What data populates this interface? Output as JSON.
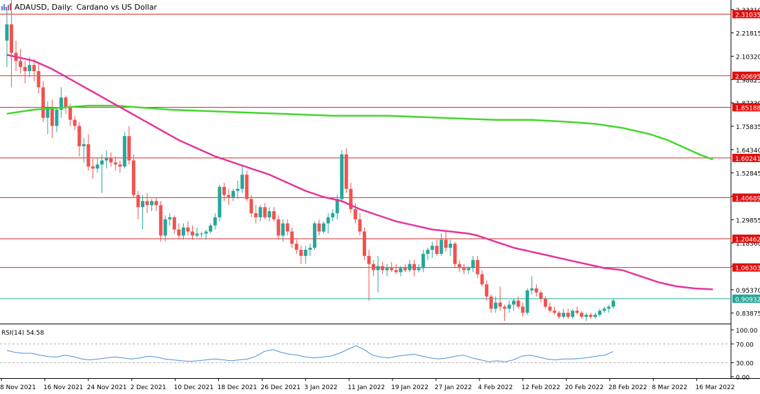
{
  "header": {
    "symbol": "ADAUSD, Daily:",
    "description": "Cardano vs US Dollar",
    "icon": "bar-chart-icon"
  },
  "rsi": {
    "label": "RSI(14) 54.58",
    "levels": [
      70,
      30
    ],
    "axis_ticks": [
      "100.00",
      "70.00",
      "30.00",
      "0.00"
    ],
    "color": "#4b8fd6"
  },
  "colors": {
    "bull": "#26a69a",
    "bear": "#ef5350",
    "ma_fast": "#e6339a",
    "ma_slow": "#44d62c",
    "level_line": "#d62a2a",
    "level_label_bg": "#e01010",
    "current_price": "#26a69a"
  },
  "chart_data": {
    "type": "candlestick",
    "title": "ADAUSD, Daily: Cardano vs US Dollar",
    "ylim": [
      0.79,
      2.38
    ],
    "price_axis_ticks": [
      "2.33310",
      "2.21815",
      "2.10320",
      "1.98825",
      "1.87330",
      "1.75835",
      "1.64340",
      "1.52845",
      "1.41350",
      "1.29855",
      "1.18360",
      "1.06865",
      "0.95370",
      "0.83875"
    ],
    "date_labels": [
      "8 Nov 2021",
      "16 Nov 2021",
      "24 Nov 2021",
      "2 Dec 2021",
      "10 Dec 2021",
      "18 Dec 2021",
      "26 Dec 2021",
      "3 Jan 2022",
      "11 Jan 2022",
      "19 Jan 2022",
      "27 Jan 2022",
      "4 Feb 2022",
      "12 Feb 2022",
      "20 Feb 2022",
      "28 Feb 2022",
      "8 Mar 2022",
      "16 Mar 2022"
    ],
    "horizontal_levels": [
      "2.31035",
      "2.00695",
      "1.85188",
      "1.60241",
      "1.40689",
      "1.20462",
      "1.06303"
    ],
    "current_price": "0.90932",
    "candles": [
      [
        2.18,
        2.33,
        2.05,
        2.26
      ],
      [
        2.26,
        2.38,
        1.95,
        2.12
      ],
      [
        2.12,
        2.18,
        2.03,
        2.08
      ],
      [
        2.08,
        2.14,
        2.02,
        2.05
      ],
      [
        2.05,
        2.08,
        1.97,
        2.03
      ],
      [
        2.03,
        2.1,
        2.0,
        2.06
      ],
      [
        2.06,
        2.09,
        1.98,
        2.03
      ],
      [
        2.03,
        2.07,
        1.92,
        1.95
      ],
      [
        1.95,
        1.98,
        1.78,
        1.8
      ],
      [
        1.8,
        1.88,
        1.72,
        1.85
      ],
      [
        1.85,
        1.89,
        1.7,
        1.76
      ],
      [
        1.76,
        1.85,
        1.73,
        1.84
      ],
      [
        1.84,
        1.95,
        1.8,
        1.9
      ],
      [
        1.9,
        1.91,
        1.82,
        1.85
      ],
      [
        1.85,
        1.87,
        1.76,
        1.79
      ],
      [
        1.79,
        1.81,
        1.74,
        1.76
      ],
      [
        1.76,
        1.78,
        1.61,
        1.66
      ],
      [
        1.66,
        1.7,
        1.58,
        1.67
      ],
      [
        1.67,
        1.72,
        1.54,
        1.56
      ],
      [
        1.56,
        1.6,
        1.5,
        1.55
      ],
      [
        1.55,
        1.6,
        1.53,
        1.57
      ],
      [
        1.57,
        1.62,
        1.43,
        1.59
      ],
      [
        1.59,
        1.64,
        1.55,
        1.6
      ],
      [
        1.6,
        1.63,
        1.56,
        1.58
      ],
      [
        1.58,
        1.61,
        1.54,
        1.57
      ],
      [
        1.57,
        1.59,
        1.53,
        1.56
      ],
      [
        1.56,
        1.73,
        1.55,
        1.71
      ],
      [
        1.71,
        1.76,
        1.57,
        1.59
      ],
      [
        1.59,
        1.62,
        1.41,
        1.42
      ],
      [
        1.42,
        1.44,
        1.3,
        1.36
      ],
      [
        1.36,
        1.42,
        1.25,
        1.39
      ],
      [
        1.39,
        1.43,
        1.33,
        1.37
      ],
      [
        1.37,
        1.4,
        1.34,
        1.39
      ],
      [
        1.39,
        1.41,
        1.34,
        1.37
      ],
      [
        1.37,
        1.39,
        1.19,
        1.22
      ],
      [
        1.22,
        1.32,
        1.19,
        1.3
      ],
      [
        1.3,
        1.33,
        1.27,
        1.31
      ],
      [
        1.31,
        1.32,
        1.23,
        1.25
      ],
      [
        1.25,
        1.28,
        1.2,
        1.22
      ],
      [
        1.22,
        1.28,
        1.2,
        1.26
      ],
      [
        1.26,
        1.29,
        1.22,
        1.24
      ],
      [
        1.24,
        1.27,
        1.2,
        1.22
      ],
      [
        1.22,
        1.26,
        1.21,
        1.23
      ],
      [
        1.23,
        1.24,
        1.21,
        1.23
      ],
      [
        1.23,
        1.25,
        1.2,
        1.24
      ],
      [
        1.24,
        1.28,
        1.23,
        1.27
      ],
      [
        1.27,
        1.33,
        1.25,
        1.31
      ],
      [
        1.31,
        1.47,
        1.29,
        1.46
      ],
      [
        1.46,
        1.48,
        1.39,
        1.42
      ],
      [
        1.42,
        1.45,
        1.37,
        1.41
      ],
      [
        1.41,
        1.45,
        1.39,
        1.44
      ],
      [
        1.44,
        1.49,
        1.4,
        1.45
      ],
      [
        1.45,
        1.57,
        1.43,
        1.52
      ],
      [
        1.52,
        1.54,
        1.39,
        1.4
      ],
      [
        1.4,
        1.42,
        1.31,
        1.33
      ],
      [
        1.33,
        1.37,
        1.28,
        1.31
      ],
      [
        1.31,
        1.37,
        1.29,
        1.36
      ],
      [
        1.36,
        1.38,
        1.3,
        1.31
      ],
      [
        1.31,
        1.36,
        1.29,
        1.34
      ],
      [
        1.34,
        1.36,
        1.29,
        1.3
      ],
      [
        1.3,
        1.32,
        1.2,
        1.22
      ],
      [
        1.22,
        1.3,
        1.19,
        1.28
      ],
      [
        1.28,
        1.3,
        1.22,
        1.24
      ],
      [
        1.24,
        1.26,
        1.16,
        1.18
      ],
      [
        1.18,
        1.2,
        1.13,
        1.15
      ],
      [
        1.15,
        1.17,
        1.08,
        1.12
      ],
      [
        1.12,
        1.17,
        1.08,
        1.15
      ],
      [
        1.15,
        1.18,
        1.12,
        1.16
      ],
      [
        1.16,
        1.29,
        1.15,
        1.28
      ],
      [
        1.28,
        1.3,
        1.22,
        1.24
      ],
      [
        1.24,
        1.29,
        1.23,
        1.28
      ],
      [
        1.28,
        1.33,
        1.23,
        1.31
      ],
      [
        1.31,
        1.35,
        1.29,
        1.33
      ],
      [
        1.33,
        1.42,
        1.3,
        1.4
      ],
      [
        1.4,
        1.64,
        1.38,
        1.62
      ],
      [
        1.62,
        1.65,
        1.43,
        1.45
      ],
      [
        1.45,
        1.48,
        1.33,
        1.35
      ],
      [
        1.35,
        1.38,
        1.28,
        1.3
      ],
      [
        1.3,
        1.33,
        1.22,
        1.24
      ],
      [
        1.24,
        1.26,
        1.1,
        1.12
      ],
      [
        1.12,
        1.15,
        0.9,
        1.08
      ],
      [
        1.08,
        1.1,
        1.02,
        1.05
      ],
      [
        1.05,
        1.12,
        0.94,
        1.07
      ],
      [
        1.07,
        1.09,
        1.03,
        1.05
      ],
      [
        1.05,
        1.08,
        1.02,
        1.06
      ],
      [
        1.06,
        1.09,
        1.04,
        1.05
      ],
      [
        1.05,
        1.08,
        1.03,
        1.04
      ],
      [
        1.04,
        1.07,
        1.02,
        1.06
      ],
      [
        1.06,
        1.08,
        1.04,
        1.05
      ],
      [
        1.05,
        1.1,
        1.04,
        1.08
      ],
      [
        1.08,
        1.1,
        1.02,
        1.05
      ],
      [
        1.05,
        1.08,
        1.04,
        1.06
      ],
      [
        1.06,
        1.15,
        1.04,
        1.13
      ],
      [
        1.13,
        1.16,
        1.1,
        1.15
      ],
      [
        1.15,
        1.19,
        1.11,
        1.17
      ],
      [
        1.17,
        1.2,
        1.12,
        1.13
      ],
      [
        1.13,
        1.23,
        1.12,
        1.2
      ],
      [
        1.2,
        1.24,
        1.14,
        1.16
      ],
      [
        1.16,
        1.2,
        1.12,
        1.18
      ],
      [
        1.18,
        1.19,
        1.06,
        1.08
      ],
      [
        1.08,
        1.1,
        1.04,
        1.06
      ],
      [
        1.06,
        1.08,
        1.03,
        1.05
      ],
      [
        1.05,
        1.07,
        1.03,
        1.06
      ],
      [
        1.06,
        1.12,
        1.04,
        1.1
      ],
      [
        1.1,
        1.12,
        1.01,
        1.03
      ],
      [
        1.03,
        1.05,
        0.97,
        0.98
      ],
      [
        0.98,
        1.0,
        0.9,
        0.92
      ],
      [
        0.92,
        0.93,
        0.84,
        0.86
      ],
      [
        0.86,
        0.92,
        0.84,
        0.89
      ],
      [
        0.89,
        0.97,
        0.85,
        0.87
      ],
      [
        0.87,
        0.88,
        0.8,
        0.86
      ],
      [
        0.86,
        0.9,
        0.84,
        0.88
      ],
      [
        0.88,
        0.91,
        0.85,
        0.9
      ],
      [
        0.9,
        0.92,
        0.86,
        0.87
      ],
      [
        0.87,
        0.89,
        0.82,
        0.84
      ],
      [
        0.84,
        0.96,
        0.83,
        0.95
      ],
      [
        0.95,
        1.02,
        0.93,
        0.96
      ],
      [
        0.96,
        0.98,
        0.92,
        0.94
      ],
      [
        0.94,
        0.95,
        0.89,
        0.91
      ],
      [
        0.91,
        0.92,
        0.86,
        0.87
      ],
      [
        0.87,
        0.89,
        0.84,
        0.85
      ],
      [
        0.85,
        0.87,
        0.83,
        0.84
      ],
      [
        0.84,
        0.85,
        0.81,
        0.82
      ],
      [
        0.82,
        0.86,
        0.81,
        0.84
      ],
      [
        0.84,
        0.86,
        0.81,
        0.82
      ],
      [
        0.82,
        0.86,
        0.81,
        0.85
      ],
      [
        0.85,
        0.87,
        0.83,
        0.84
      ],
      [
        0.84,
        0.85,
        0.81,
        0.82
      ],
      [
        0.82,
        0.84,
        0.8,
        0.83
      ],
      [
        0.83,
        0.84,
        0.81,
        0.82
      ],
      [
        0.82,
        0.84,
        0.81,
        0.83
      ],
      [
        0.83,
        0.86,
        0.82,
        0.85
      ],
      [
        0.85,
        0.87,
        0.84,
        0.86
      ],
      [
        0.86,
        0.88,
        0.84,
        0.87
      ],
      [
        0.87,
        0.91,
        0.86,
        0.9
      ]
    ],
    "ma_fast": [
      [
        0,
        2.11
      ],
      [
        6,
        2.08
      ],
      [
        10,
        2.04
      ],
      [
        14,
        1.99
      ],
      [
        18,
        1.94
      ],
      [
        22,
        1.89
      ],
      [
        26,
        1.84
      ],
      [
        30,
        1.79
      ],
      [
        34,
        1.74
      ],
      [
        38,
        1.69
      ],
      [
        42,
        1.65
      ],
      [
        46,
        1.61
      ],
      [
        50,
        1.58
      ],
      [
        54,
        1.55
      ],
      [
        58,
        1.52
      ],
      [
        62,
        1.48
      ],
      [
        66,
        1.44
      ],
      [
        70,
        1.41
      ],
      [
        74,
        1.39
      ],
      [
        78,
        1.35
      ],
      [
        82,
        1.32
      ],
      [
        86,
        1.29
      ],
      [
        90,
        1.27
      ],
      [
        94,
        1.25
      ],
      [
        98,
        1.24
      ],
      [
        102,
        1.23
      ],
      [
        104,
        1.22
      ],
      [
        108,
        1.19
      ],
      [
        112,
        1.16
      ],
      [
        116,
        1.14
      ],
      [
        120,
        1.12
      ],
      [
        124,
        1.1
      ],
      [
        128,
        1.08
      ],
      [
        132,
        1.06
      ],
      [
        136,
        1.05
      ],
      [
        140,
        1.02
      ],
      [
        144,
        0.99
      ],
      [
        148,
        0.97
      ],
      [
        152,
        0.96
      ],
      [
        156,
        0.955
      ]
    ],
    "ma_slow": [
      [
        0,
        1.82
      ],
      [
        6,
        1.84
      ],
      [
        12,
        1.85
      ],
      [
        18,
        1.86
      ],
      [
        24,
        1.86
      ],
      [
        30,
        1.85
      ],
      [
        36,
        1.84
      ],
      [
        48,
        1.83
      ],
      [
        60,
        1.82
      ],
      [
        72,
        1.81
      ],
      [
        84,
        1.81
      ],
      [
        96,
        1.8
      ],
      [
        108,
        1.79
      ],
      [
        116,
        1.79
      ],
      [
        124,
        1.78
      ],
      [
        130,
        1.77
      ],
      [
        136,
        1.75
      ],
      [
        142,
        1.72
      ],
      [
        146,
        1.69
      ],
      [
        150,
        1.65
      ],
      [
        153,
        1.62
      ],
      [
        156,
        1.595
      ]
    ],
    "rsi_values": [
      [
        0,
        56
      ],
      [
        3,
        52
      ],
      [
        6,
        50
      ],
      [
        9,
        50
      ],
      [
        12,
        46
      ],
      [
        15,
        43
      ],
      [
        18,
        42
      ],
      [
        21,
        46
      ],
      [
        24,
        43
      ],
      [
        27,
        38
      ],
      [
        30,
        36
      ],
      [
        33,
        38
      ],
      [
        36,
        40
      ],
      [
        39,
        42
      ],
      [
        42,
        40
      ],
      [
        45,
        38
      ],
      [
        48,
        40
      ],
      [
        51,
        44
      ],
      [
        54,
        42
      ],
      [
        57,
        38
      ],
      [
        60,
        36
      ],
      [
        63,
        34
      ],
      [
        66,
        33
      ],
      [
        69,
        34
      ],
      [
        72,
        36
      ],
      [
        75,
        38
      ],
      [
        78,
        36
      ],
      [
        81,
        34
      ],
      [
        84,
        36
      ],
      [
        87,
        38
      ],
      [
        90,
        44
      ],
      [
        93,
        54
      ],
      [
        96,
        58
      ],
      [
        99,
        52
      ],
      [
        102,
        48
      ],
      [
        105,
        46
      ],
      [
        108,
        42
      ],
      [
        111,
        40
      ],
      [
        114,
        42
      ],
      [
        117,
        44
      ],
      [
        120,
        50
      ],
      [
        123,
        58
      ],
      [
        126,
        66
      ],
      [
        129,
        58
      ],
      [
        132,
        46
      ],
      [
        135,
        42
      ],
      [
        138,
        40
      ],
      [
        141,
        44
      ],
      [
        144,
        46
      ],
      [
        147,
        48
      ],
      [
        150,
        44
      ],
      [
        153,
        40
      ],
      [
        156,
        38
      ],
      [
        159,
        40
      ],
      [
        162,
        44
      ],
      [
        165,
        46
      ],
      [
        168,
        40
      ],
      [
        171,
        36
      ],
      [
        174,
        32
      ],
      [
        177,
        34
      ],
      [
        180,
        32
      ],
      [
        183,
        36
      ],
      [
        186,
        44
      ],
      [
        189,
        46
      ],
      [
        192,
        42
      ],
      [
        195,
        38
      ],
      [
        198,
        36
      ],
      [
        201,
        38
      ],
      [
        204,
        38
      ],
      [
        207,
        39
      ],
      [
        210,
        41
      ],
      [
        213,
        44
      ],
      [
        216,
        46
      ],
      [
        219,
        54
      ]
    ]
  }
}
